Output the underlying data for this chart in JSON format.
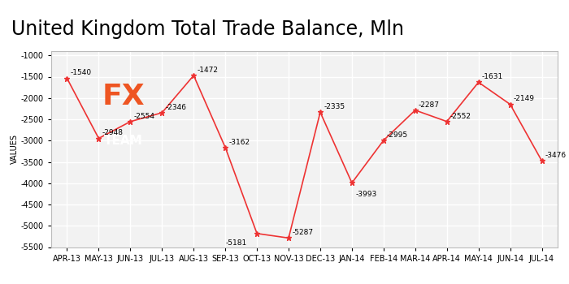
{
  "title": "United Kingdom Total Trade Balance, Mln",
  "ylabel": "VALUES",
  "labels": [
    "APR-13",
    "MAY-13",
    "JUN-13",
    "JUL-13",
    "AUG-13",
    "SEP-13",
    "OCT-13",
    "NOV-13",
    "DEC-13",
    "JAN-14",
    "FEB-14",
    "MAR-14",
    "APR-14",
    "MAY-14",
    "JUN-14",
    "JUL-14"
  ],
  "values": [
    -1540,
    -2948,
    -2554,
    -2346,
    -1472,
    -3162,
    -5181,
    -5287,
    -2335,
    -3993,
    -2995,
    -2287,
    -2552,
    -1631,
    -2149,
    -3476
  ],
  "line_color": "#EE3333",
  "marker": "*",
  "ylim": [
    -5500,
    -900
  ],
  "yticks": [
    -1000,
    -1500,
    -2000,
    -2500,
    -3000,
    -3500,
    -4000,
    -4500,
    -5000,
    -5500
  ],
  "bg_color": "#FFFFFF",
  "plot_bg_color": "#F2F2F2",
  "grid_color": "#FFFFFF",
  "title_fontsize": 17,
  "tick_fontsize": 7,
  "annotation_fontsize": 6.5,
  "ylabel_fontsize": 7,
  "logo_color": "#787878",
  "logo_fx_color": "#EE5522",
  "logo_team_color": "#FFFFFF"
}
